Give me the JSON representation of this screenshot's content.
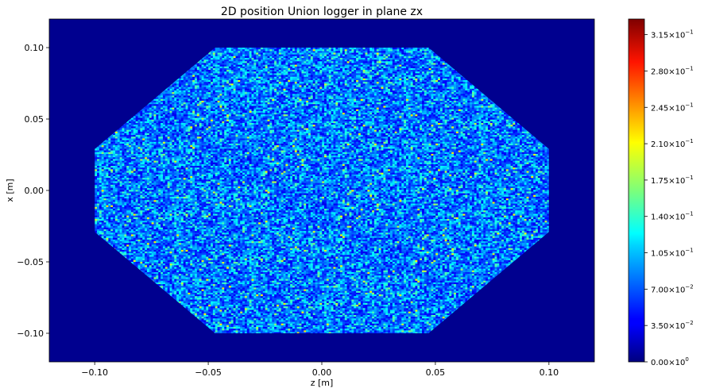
{
  "chart_data": {
    "type": "heatmap",
    "title": "2D position Union logger in plane zx",
    "xlabel": "z [m]",
    "ylabel": "x [m]",
    "xlim": [
      -0.12,
      0.12
    ],
    "ylim": [
      -0.12,
      0.12
    ],
    "x_ticks": [
      {
        "value": -0.1,
        "label": "−0.10"
      },
      {
        "value": -0.05,
        "label": "−0.05"
      },
      {
        "value": 0.0,
        "label": "0.00"
      },
      {
        "value": 0.05,
        "label": "0.05"
      },
      {
        "value": 0.1,
        "label": "0.10"
      }
    ],
    "y_ticks": [
      {
        "value": 0.1,
        "label": "0.10"
      },
      {
        "value": 0.05,
        "label": "0.05"
      },
      {
        "value": 0.0,
        "label": "0.00"
      },
      {
        "value": -0.05,
        "label": "−0.05"
      },
      {
        "value": -0.1,
        "label": "−0.10"
      }
    ],
    "colormap": "jet",
    "background_color": "#00008f",
    "colorbar": {
      "range": [
        0,
        0.33
      ],
      "ticks": [
        {
          "value": 0.315,
          "mantissa": "3.15",
          "exponent": "−1"
        },
        {
          "value": 0.28,
          "mantissa": "2.80",
          "exponent": "−1"
        },
        {
          "value": 0.245,
          "mantissa": "2.45",
          "exponent": "−1"
        },
        {
          "value": 0.21,
          "mantissa": "2.10",
          "exponent": "−1"
        },
        {
          "value": 0.175,
          "mantissa": "1.75",
          "exponent": "−1"
        },
        {
          "value": 0.14,
          "mantissa": "1.40",
          "exponent": "−1"
        },
        {
          "value": 0.105,
          "mantissa": "1.05",
          "exponent": "−1"
        },
        {
          "value": 0.07,
          "mantissa": "7.00",
          "exponent": "−2"
        },
        {
          "value": 0.035,
          "mantissa": "3.50",
          "exponent": "−2"
        },
        {
          "value": 0.0,
          "mantissa": "0.00",
          "exponent": "0"
        }
      ]
    },
    "region": {
      "shape": "octagon",
      "z_extent": [
        -0.1,
        0.1
      ],
      "x_extent": [
        -0.1,
        0.1
      ],
      "flat_top_z": [
        -0.047,
        0.047
      ],
      "flat_side_x": [
        -0.029,
        0.029
      ]
    },
    "grid": false
  }
}
